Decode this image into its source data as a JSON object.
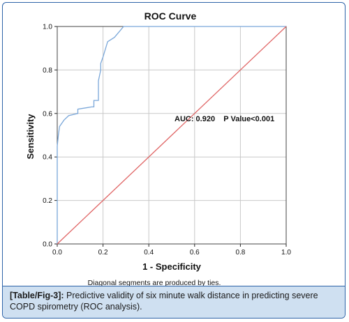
{
  "chart_data": {
    "type": "line",
    "title": "ROC Curve",
    "xlabel": "1 - Specificity",
    "ylabel": "Sensitivity",
    "xlim": [
      0,
      1
    ],
    "ylim": [
      0,
      1
    ],
    "xticks": [
      "0.0",
      "0.2",
      "0.4",
      "0.6",
      "0.8",
      "1.0"
    ],
    "yticks": [
      "0.0",
      "0.2",
      "0.4",
      "0.6",
      "0.8",
      "1.0"
    ],
    "grid": true,
    "series": [
      {
        "color": "#7aa7d9",
        "points": [
          [
            0,
            0
          ],
          [
            0,
            0.45
          ],
          [
            0.005,
            0.5
          ],
          [
            0.01,
            0.54
          ],
          [
            0.03,
            0.57
          ],
          [
            0.05,
            0.59
          ],
          [
            0.09,
            0.6
          ],
          [
            0.09,
            0.62
          ],
          [
            0.15,
            0.63
          ],
          [
            0.16,
            0.63
          ],
          [
            0.16,
            0.66
          ],
          [
            0.18,
            0.66
          ],
          [
            0.18,
            0.75
          ],
          [
            0.19,
            0.8
          ],
          [
            0.19,
            0.83
          ],
          [
            0.2,
            0.86
          ],
          [
            0.22,
            0.93
          ],
          [
            0.25,
            0.95
          ],
          [
            0.29,
            1.0
          ],
          [
            1.0,
            1.0
          ]
        ]
      },
      {
        "color": "#e06666",
        "points": [
          [
            0,
            0
          ],
          [
            1,
            1
          ]
        ]
      }
    ],
    "annotation": "AUC: 0.920    P Value<0.001",
    "footnote": "Diagonal segments are produced by ties."
  },
  "caption": {
    "label": "[Table/Fig-3]:",
    "text": " Predictive validity of six minute walk distance in predicting severe COPD spirometry (ROC analysis)."
  }
}
